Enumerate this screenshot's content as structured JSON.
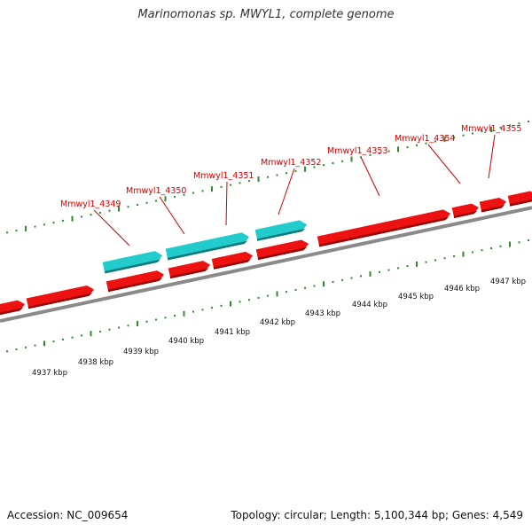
{
  "title": "Marinomonas sp. MWYL1, complete genome",
  "footer": {
    "accession": "Accession: NC_009654",
    "topology": "Topology: circular; Length: 5,100,344 bp; Genes: 4,549"
  },
  "colors": {
    "gene": "#ee1111",
    "gene_shadow": "#990000",
    "rna": "#22cccc",
    "rna_shadow": "#0a7a7a",
    "tick": "#2e8b2e",
    "label": "#d00000",
    "backbone": "#8a8a8a"
  },
  "gene_labels": [
    "Mmwyl1_4349",
    "Mmwyl1_4350",
    "Mmwyl1_4351",
    "Mmwyl1_4352",
    "Mmwyl1_4353",
    "Mmwyl1_4354",
    "Mmwyl1_4355"
  ],
  "kbp_labels": [
    "4937 kbp",
    "4938 kbp",
    "4939 kbp",
    "4940 kbp",
    "4941 kbp",
    "4942 kbp",
    "4943 kbp",
    "4944 kbp",
    "4945 kbp",
    "4946 kbp",
    "4947 kbp"
  ]
}
